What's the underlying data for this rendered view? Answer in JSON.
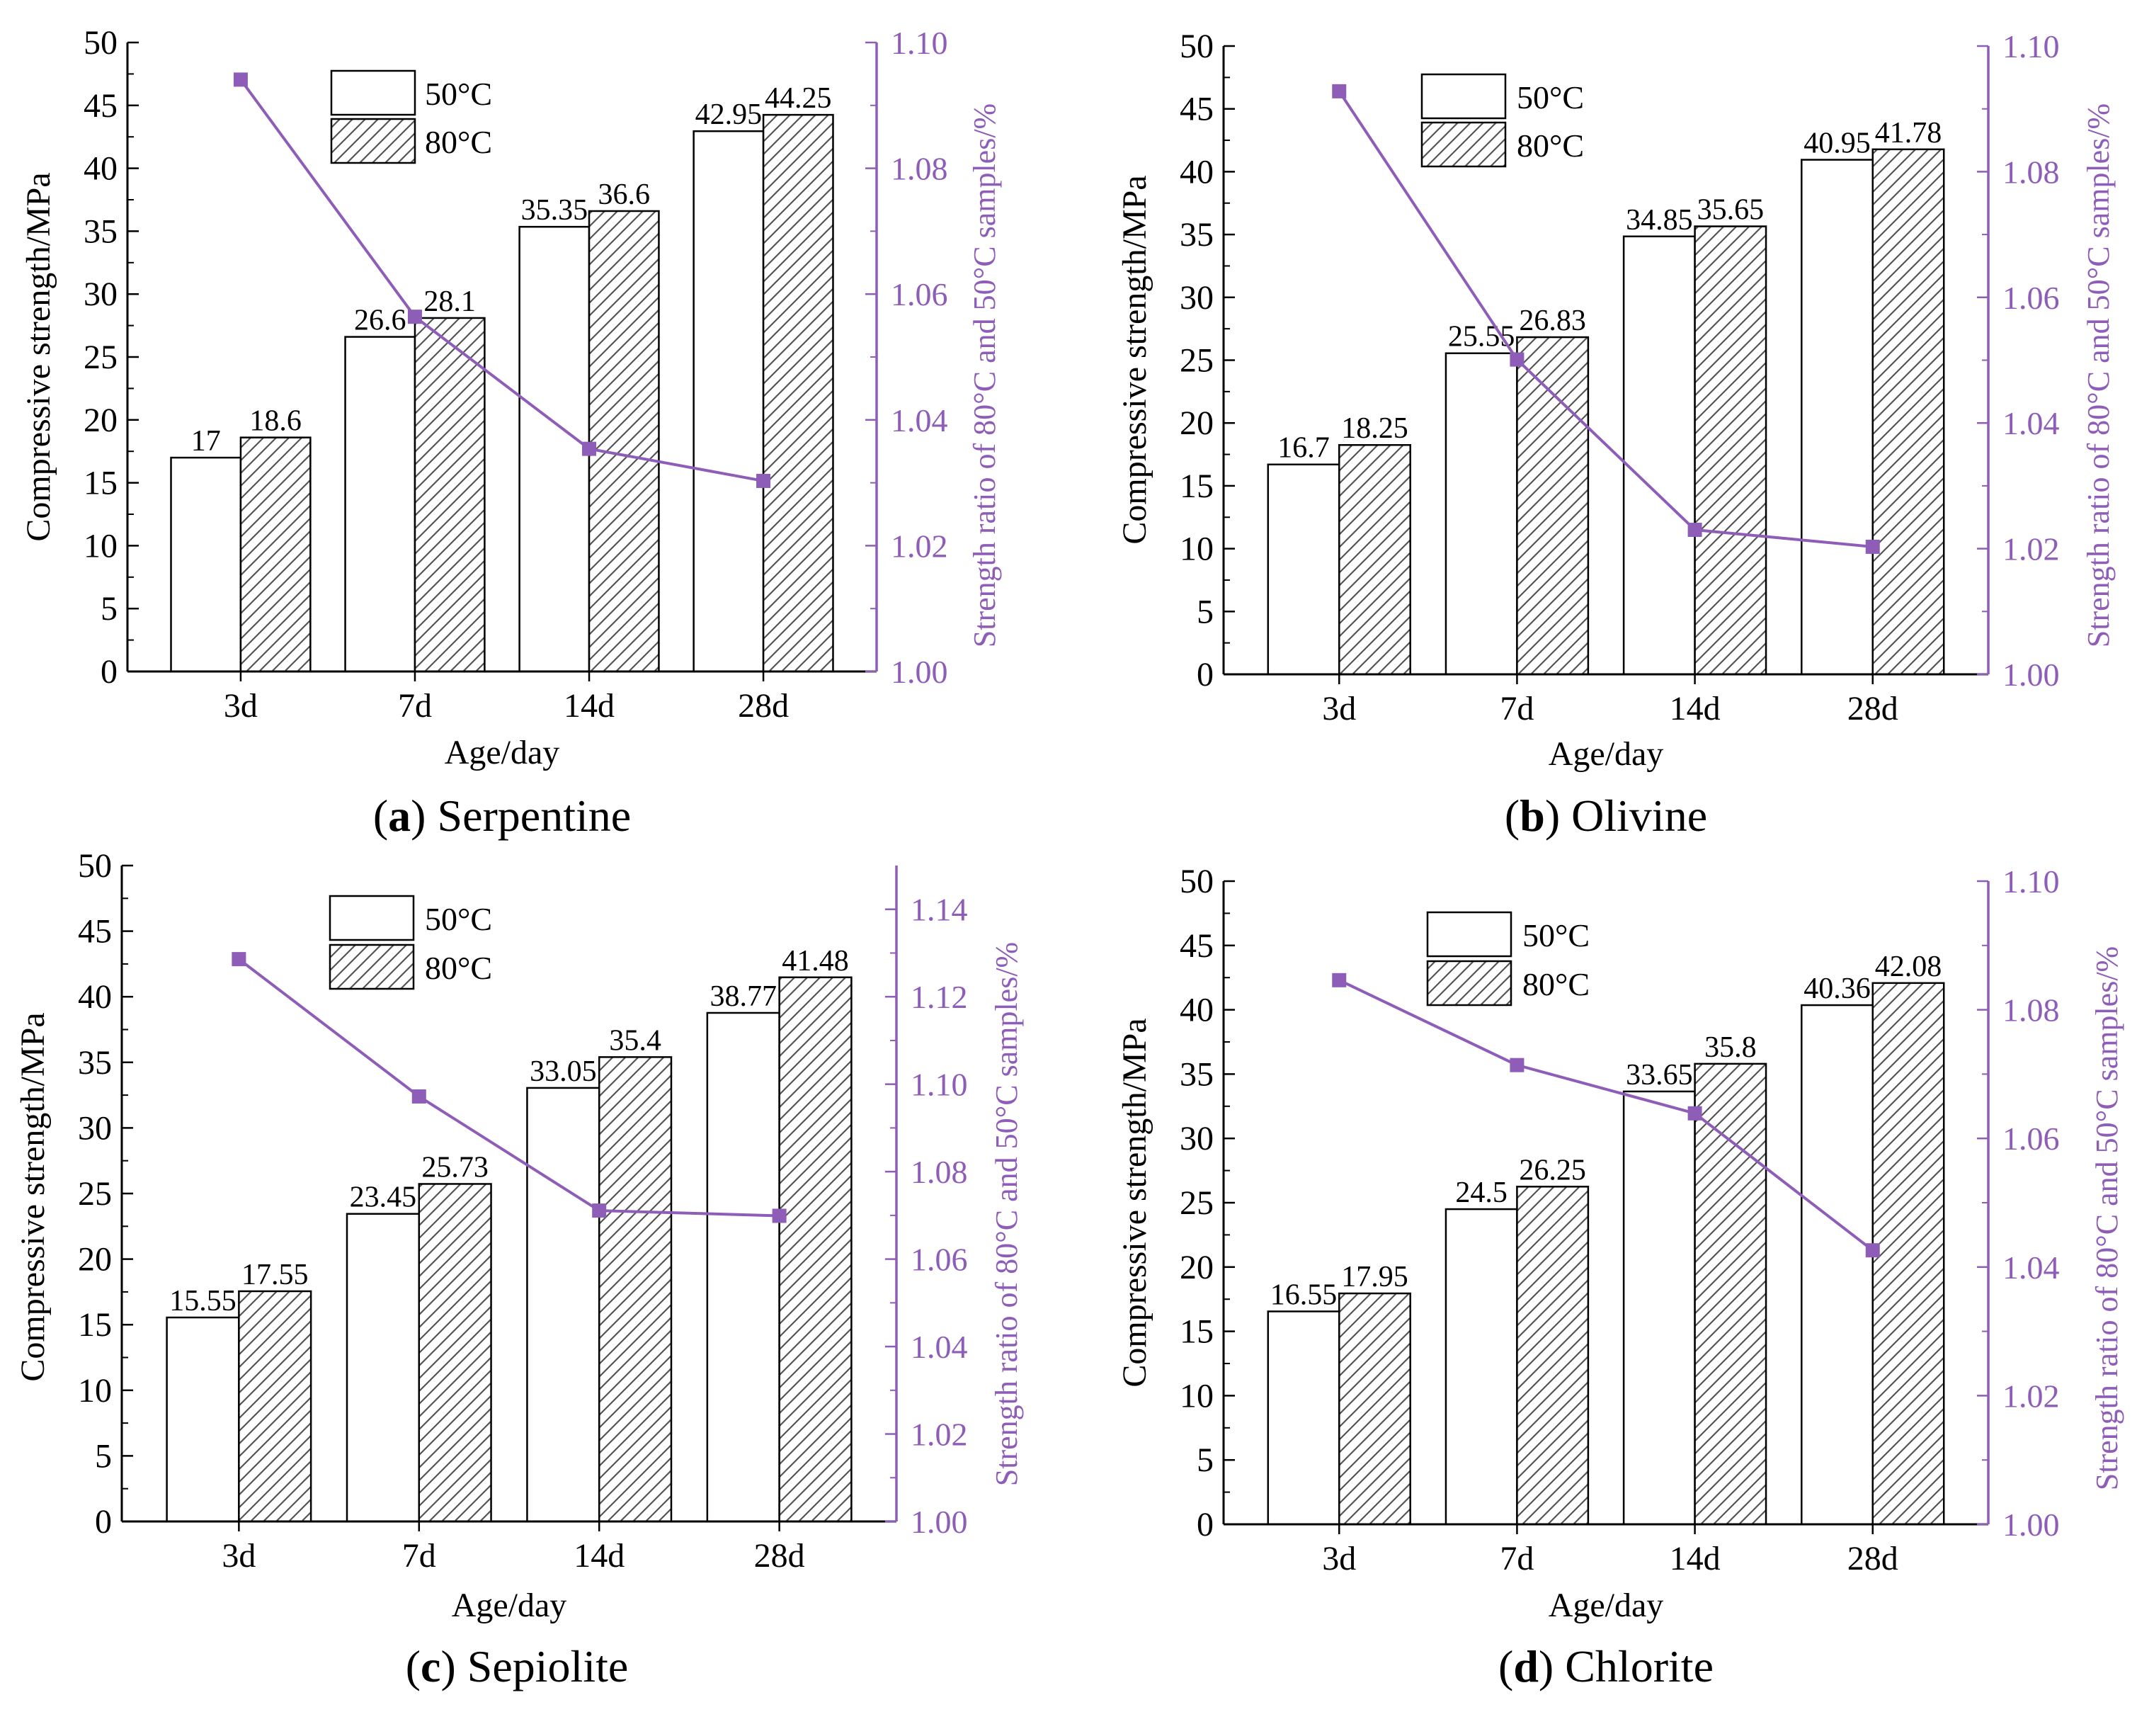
{
  "colors": {
    "ratio": "#8e5db8",
    "bar_fill": "#ffffff",
    "bar_stroke": "#000000",
    "hatch": "#555555",
    "axis": "#000000"
  },
  "chart_data": [
    {
      "type": "bar",
      "caption_letter": "a",
      "caption_text": "Serpentine",
      "caption_open": "(",
      "caption_close": ")",
      "xlabel": "Age/day",
      "ylabel": "Compressive  strength/MPa",
      "y2label": "Strength ratio of  80°C and 50°C samples/%",
      "categories": [
        "3d",
        "7d",
        "14d",
        "28d"
      ],
      "ylim": [
        0,
        50
      ],
      "yticks": [
        "0",
        "5",
        "10",
        "15",
        "20",
        "25",
        "30",
        "35",
        "40",
        "45",
        "50"
      ],
      "y2lim": [
        1.0,
        1.1
      ],
      "y2ticks": [
        "1.00",
        "1.02",
        "1.04",
        "1.06",
        "1.08",
        "1.10"
      ],
      "series": [
        {
          "name": "50°C",
          "kind": "bar",
          "values": [
            17,
            26.6,
            35.35,
            42.95
          ],
          "labels": [
            "17",
            "26.6",
            "35.35",
            "42.95"
          ]
        },
        {
          "name": "80°C",
          "kind": "bar-hatched",
          "values": [
            18.6,
            28.1,
            36.6,
            44.25
          ],
          "labels": [
            "18.6",
            "28.1",
            "36.6",
            "44.25"
          ]
        },
        {
          "name": "ratio",
          "kind": "line",
          "axis": "right",
          "values": [
            1.0941,
            1.0564,
            1.0354,
            1.0303
          ]
        }
      ]
    },
    {
      "type": "bar",
      "caption_letter": "b",
      "caption_text": "Olivine",
      "caption_open": "(",
      "caption_close": ")",
      "xlabel": "Age/day",
      "ylabel": "Compressive  strength/MPa",
      "y2label": "Strength ratio of  80°C and 50°C samples/%",
      "categories": [
        "3d",
        "7d",
        "14d",
        "28d"
      ],
      "ylim": [
        0,
        50
      ],
      "yticks": [
        "0",
        "5",
        "10",
        "15",
        "20",
        "25",
        "30",
        "35",
        "40",
        "45",
        "50"
      ],
      "y2lim": [
        1.0,
        1.1
      ],
      "y2ticks": [
        "1.00",
        "1.02",
        "1.04",
        "1.06",
        "1.08",
        "1.10"
      ],
      "series": [
        {
          "name": "50°C",
          "kind": "bar",
          "values": [
            16.7,
            25.55,
            34.85,
            40.95
          ],
          "labels": [
            "16.7",
            "25.55",
            "34.85",
            "40.95"
          ]
        },
        {
          "name": "80°C",
          "kind": "bar-hatched",
          "values": [
            18.25,
            26.83,
            35.65,
            41.78
          ],
          "labels": [
            "18.25",
            "26.83",
            "35.65",
            "41.78"
          ]
        },
        {
          "name": "ratio",
          "kind": "line",
          "axis": "right",
          "values": [
            1.0928,
            1.0501,
            1.023,
            1.0203
          ]
        }
      ]
    },
    {
      "type": "bar",
      "caption_letter": "c",
      "caption_text": "Sepiolite",
      "caption_open": "(",
      "caption_close": ")",
      "xlabel": "Age/day",
      "ylabel": "Compressive  strength/MPa",
      "y2label": "Strength ratio of  80°C and 50°C samples/%",
      "categories": [
        "3d",
        "7d",
        "14d",
        "28d"
      ],
      "ylim": [
        0,
        50
      ],
      "yticks": [
        "0",
        "5",
        "10",
        "15",
        "20",
        "25",
        "30",
        "35",
        "40",
        "45",
        "50"
      ],
      "y2lim": [
        1.0,
        1.15
      ],
      "y2ticks": [
        "1.00",
        "1.02",
        "1.04",
        "1.06",
        "1.08",
        "1.10",
        "1.12",
        "1.14"
      ],
      "series": [
        {
          "name": "50°C",
          "kind": "bar",
          "values": [
            15.55,
            23.45,
            33.05,
            38.77
          ],
          "labels": [
            "15.55",
            "23.45",
            "33.05",
            "38.77"
          ]
        },
        {
          "name": "80°C",
          "kind": "bar-hatched",
          "values": [
            17.55,
            25.73,
            35.4,
            41.48
          ],
          "labels": [
            "17.55",
            "25.73",
            "35.4",
            "41.48"
          ]
        },
        {
          "name": "ratio",
          "kind": "line",
          "axis": "right",
          "values": [
            1.1286,
            1.0972,
            1.0711,
            1.0699
          ]
        }
      ]
    },
    {
      "type": "bar",
      "caption_letter": "d",
      "caption_text": "Chlorite",
      "caption_open": "(",
      "caption_close": ")",
      "xlabel": "Age/day",
      "ylabel": "Compressive  strength/MPa",
      "y2label": "Strength ratio of  80°C and 50°C samples/%",
      "categories": [
        "3d",
        "7d",
        "14d",
        "28d"
      ],
      "ylim": [
        0,
        50
      ],
      "yticks": [
        "0",
        "5",
        "10",
        "15",
        "20",
        "25",
        "30",
        "35",
        "40",
        "45",
        "50"
      ],
      "y2lim": [
        1.0,
        1.1
      ],
      "y2ticks": [
        "1.00",
        "1.02",
        "1.04",
        "1.06",
        "1.08",
        "1.10"
      ],
      "series": [
        {
          "name": "50°C",
          "kind": "bar",
          "values": [
            16.55,
            24.5,
            33.65,
            40.36
          ],
          "labels": [
            "16.55",
            "24.5",
            "33.65",
            "40.36"
          ]
        },
        {
          "name": "80°C",
          "kind": "bar-hatched",
          "values": [
            17.95,
            26.25,
            35.8,
            42.08
          ],
          "labels": [
            "17.95",
            "26.25",
            "35.8",
            "42.08"
          ]
        },
        {
          "name": "ratio",
          "kind": "line",
          "axis": "right",
          "values": [
            1.0846,
            1.0714,
            1.0639,
            1.0426
          ]
        }
      ]
    }
  ]
}
